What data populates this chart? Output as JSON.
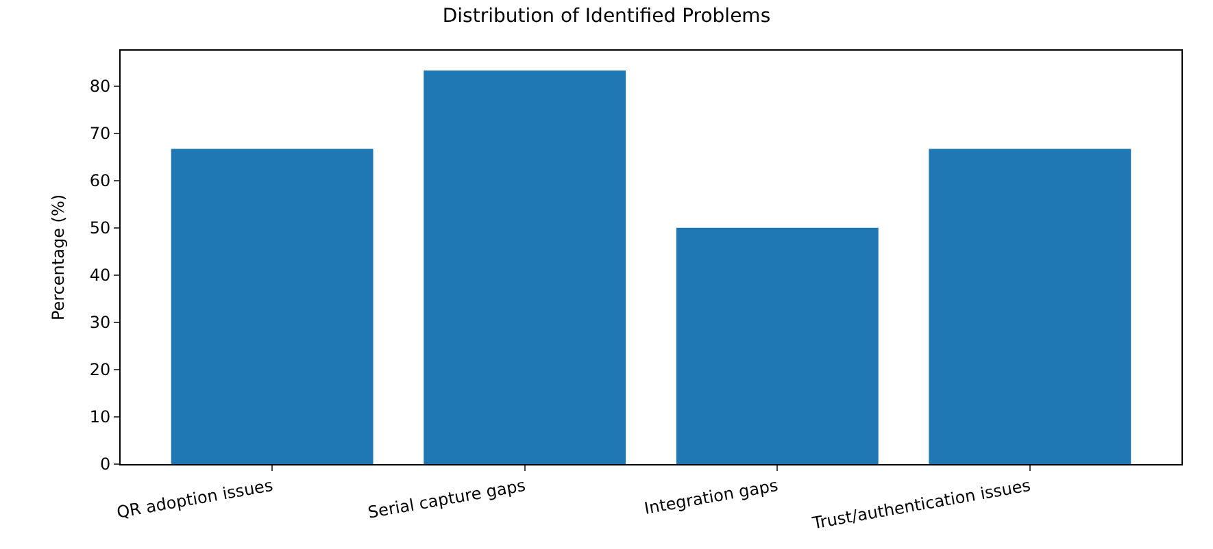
{
  "chart_data": {
    "type": "bar",
    "title": "Distribution of Identified Problems",
    "ylabel": "Percentage (%)",
    "categories": [
      "QR adoption issues",
      "Serial capture gaps",
      "Integration gaps",
      "Trust/authentication issues"
    ],
    "values": [
      66.7,
      83.3,
      50,
      66.7
    ],
    "color": "#1f77b4",
    "ylim": [
      0,
      87.5
    ],
    "yticks": [
      0,
      10,
      20,
      30,
      40,
      50,
      60,
      70,
      80
    ]
  }
}
